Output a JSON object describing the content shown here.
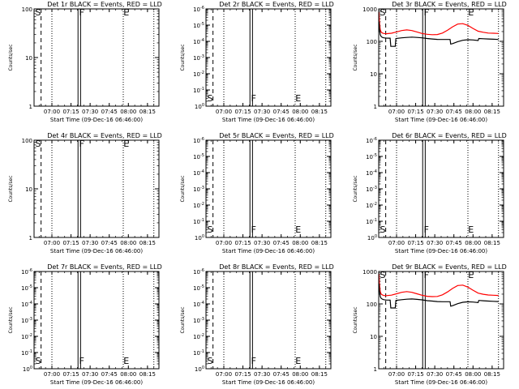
{
  "chart_data": [
    {
      "type": "line",
      "title": "Det 1r BLACK = Events, RED = LLD",
      "xlabel": "Start Time (09-Dec-16 06:46:00)",
      "ylabel": "Counts/sec",
      "yscale": "log",
      "ylim": [
        1,
        100
      ],
      "yticks": [
        "1",
        "10",
        "100"
      ],
      "xticks": [
        "07:00",
        "07:15",
        "07:30",
        "07:45",
        "08:00",
        "08:15"
      ],
      "markers": {
        "S": "S",
        "F": "F",
        "E": "E"
      },
      "series": []
    },
    {
      "type": "line",
      "title": "Det 2r BLACK = Events, RED = LLD",
      "xlabel": "Start Time (09-Dec-16 06:46:00)",
      "ylabel": "Counts/sec",
      "yscale": "log",
      "ylim": [
        1,
        1e-06
      ],
      "yticks": [
        "10^0",
        "10^-1",
        "10^-2",
        "10^-3",
        "10^-4",
        "10^-5",
        "10^-6"
      ],
      "xticks": [
        "07:00",
        "07:15",
        "07:30",
        "07:45",
        "08:00",
        "08:15"
      ],
      "markers": {
        "S": "S",
        "F": "F",
        "E": "E"
      },
      "series": []
    },
    {
      "type": "line",
      "title": "Det 3r BLACK = Events, RED = LLD",
      "xlabel": "Start Time (09-Dec-16 06:46:00)",
      "ylabel": "Counts/sec",
      "yscale": "log",
      "ylim": [
        1,
        1000
      ],
      "yticks": [
        "1",
        "10",
        "100",
        "1000"
      ],
      "xticks": [
        "07:00",
        "07:15",
        "07:30",
        "07:45",
        "08:00",
        "08:15"
      ],
      "markers": {
        "S": "S",
        "F": "F",
        "E": "E"
      },
      "series": [
        {
          "color": "#ff0000",
          "t": [
            0.2,
            0.6,
            1.2,
            2,
            3,
            4,
            6,
            10,
            14,
            18,
            22,
            26,
            30,
            34,
            38,
            42,
            46,
            50,
            54,
            58,
            62,
            66,
            70,
            74,
            78,
            82,
            86,
            90,
            94
          ],
          "values": [
            800,
            400,
            230,
            190,
            180,
            175,
            172,
            178,
            195,
            215,
            225,
            215,
            195,
            175,
            165,
            160,
            162,
            180,
            220,
            280,
            340,
            350,
            310,
            250,
            205,
            190,
            180,
            178,
            175
          ]
        },
        {
          "color": "#000000",
          "t": [
            0.2,
            0.6,
            1.2,
            2,
            3,
            4,
            6,
            8,
            9,
            9.5,
            13,
            13.5,
            18,
            22,
            26,
            30,
            34,
            38,
            42,
            46,
            50,
            54,
            56,
            56.5,
            58,
            62,
            66,
            70,
            74,
            78,
            78.5,
            82,
            86,
            90,
            94
          ],
          "values": [
            400,
            250,
            160,
            140,
            132,
            128,
            126,
            125,
            125,
            70,
            70,
            122,
            128,
            132,
            135,
            132,
            128,
            122,
            118,
            115,
            114,
            114,
            114,
            82,
            85,
            98,
            108,
            112,
            110,
            106,
            122,
            120,
            118,
            116,
            114
          ]
        }
      ]
    },
    {
      "type": "line",
      "title": "Det 4r BLACK = Events, RED = LLD",
      "xlabel": "Start Time (09-Dec-16 06:46:00)",
      "ylabel": "Counts/sec",
      "yscale": "log",
      "ylim": [
        1,
        100
      ],
      "yticks": [
        "1",
        "10",
        "100"
      ],
      "xticks": [
        "07:00",
        "07:15",
        "07:30",
        "07:45",
        "08:00",
        "08:15"
      ],
      "markers": {
        "S": "S",
        "F": "F",
        "E": "E"
      },
      "series": []
    },
    {
      "type": "line",
      "title": "Det 5r BLACK = Events, RED = LLD",
      "xlabel": "Start Time (09-Dec-16 06:46:00)",
      "ylabel": "Counts/sec",
      "yscale": "log",
      "ylim": [
        1,
        1e-06
      ],
      "yticks": [
        "10^0",
        "10^-1",
        "10^-2",
        "10^-3",
        "10^-4",
        "10^-5",
        "10^-6"
      ],
      "xticks": [
        "07:00",
        "07:15",
        "07:30",
        "07:45",
        "08:00",
        "08:15"
      ],
      "markers": {
        "S": "S",
        "F": "F",
        "E": "E"
      },
      "series": []
    },
    {
      "type": "line",
      "title": "Det 6r BLACK = Events, RED = LLD",
      "xlabel": "Start Time (09-Dec-16 06:46:00)",
      "ylabel": "Counts/sec",
      "yscale": "log",
      "ylim": [
        1,
        1e-06
      ],
      "yticks": [
        "10^0",
        "10^-1",
        "10^-2",
        "10^-3",
        "10^-4",
        "10^-5",
        "10^-6"
      ],
      "xticks": [
        "07:00",
        "07:15",
        "07:30",
        "07:45",
        "08:00",
        "08:15"
      ],
      "markers": {
        "S": "S",
        "F": "F",
        "E": "E"
      },
      "series": []
    },
    {
      "type": "line",
      "title": "Det 7r BLACK = Events, RED = LLD",
      "xlabel": "Start Time (09-Dec-16 06:46:00)",
      "ylabel": "Counts/sec",
      "yscale": "log",
      "ylim": [
        1,
        1e-06
      ],
      "yticks": [
        "10^0",
        "10^-1",
        "10^-2",
        "10^-3",
        "10^-4",
        "10^-5",
        "10^-6"
      ],
      "xticks": [
        "07:00",
        "07:15",
        "07:30",
        "07:45",
        "08:00",
        "08:15"
      ],
      "markers": {
        "S": "S",
        "F": "F",
        "E": "E"
      },
      "series": []
    },
    {
      "type": "line",
      "title": "Det 8r BLACK = Events, RED = LLD",
      "xlabel": "Start Time (09-Dec-16 06:46:00)",
      "ylabel": "Counts/sec",
      "yscale": "log",
      "ylim": [
        1,
        1e-06
      ],
      "yticks": [
        "10^0",
        "10^-1",
        "10^-2",
        "10^-3",
        "10^-4",
        "10^-5",
        "10^-6"
      ],
      "xticks": [
        "07:00",
        "07:15",
        "07:30",
        "07:45",
        "08:00",
        "08:15"
      ],
      "markers": {
        "S": "S",
        "F": "F",
        "E": "E"
      },
      "series": []
    },
    {
      "type": "line",
      "title": "Det 9r BLACK = Events, RED = LLD",
      "xlabel": "Start Time (09-Dec-16 06:46:00)",
      "ylabel": "Counts/sec",
      "yscale": "log",
      "ylim": [
        1,
        1000
      ],
      "yticks": [
        "1",
        "10",
        "100",
        "1000"
      ],
      "xticks": [
        "07:00",
        "07:15",
        "07:30",
        "07:45",
        "08:00",
        "08:15"
      ],
      "markers": {
        "S": "S",
        "F": "F",
        "E": "E"
      },
      "series": [
        {
          "color": "#ff0000",
          "t": [
            0.2,
            0.6,
            1.2,
            2,
            3,
            4,
            6,
            10,
            14,
            18,
            22,
            26,
            30,
            34,
            38,
            42,
            46,
            50,
            54,
            58,
            62,
            66,
            70,
            74,
            78,
            82,
            86,
            90,
            94
          ],
          "values": [
            850,
            420,
            240,
            200,
            188,
            182,
            180,
            186,
            205,
            228,
            240,
            228,
            205,
            185,
            172,
            168,
            170,
            190,
            235,
            300,
            370,
            380,
            330,
            265,
            215,
            198,
            188,
            185,
            182
          ]
        },
        {
          "color": "#000000",
          "t": [
            0.2,
            0.6,
            1.2,
            2,
            3,
            4,
            6,
            8,
            9,
            9.5,
            13,
            13.5,
            18,
            22,
            26,
            30,
            34,
            38,
            42,
            46,
            50,
            54,
            56,
            56.5,
            58,
            62,
            66,
            70,
            74,
            78,
            78.5,
            82,
            86,
            90,
            94
          ],
          "values": [
            420,
            260,
            168,
            148,
            140,
            135,
            132,
            131,
            131,
            75,
            75,
            128,
            135,
            140,
            142,
            138,
            133,
            126,
            122,
            118,
            117,
            117,
            117,
            85,
            88,
            102,
            112,
            116,
            114,
            110,
            128,
            125,
            122,
            120,
            118
          ]
        }
      ]
    }
  ],
  "time_axis": {
    "min_minutes": 0,
    "max_minutes": 98,
    "tick_minutes": [
      14,
      29,
      44,
      59,
      74,
      89
    ],
    "dotted_minutes": [
      14,
      70,
      94
    ],
    "dashed_minutes": [
      5.5
    ],
    "solid_minutes": [
      34.5,
      36.5
    ],
    "marker_minutes": {
      "S": 0.3,
      "F": 34.8,
      "E": 69.5
    }
  }
}
